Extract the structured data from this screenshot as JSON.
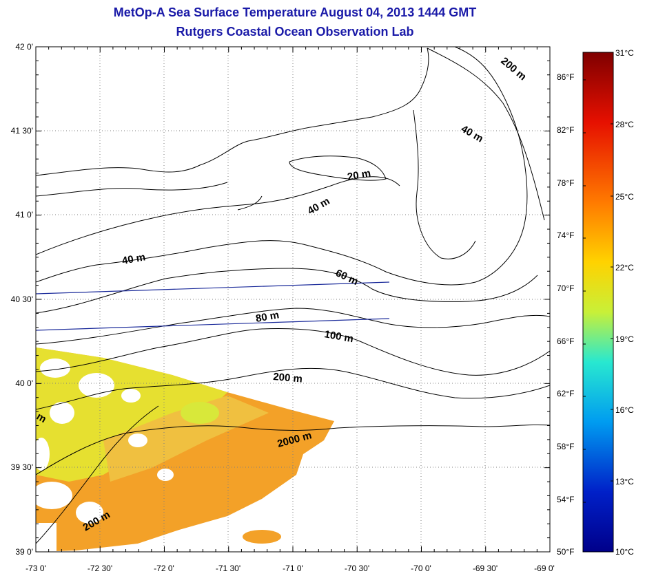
{
  "header": {
    "title": "MetOp-A Sea Surface Temperature August 04, 2013 1444 GMT",
    "subtitle": "Rutgers Coastal Ocean Observation Lab"
  },
  "axes": {
    "lon_labels": [
      "-73 0'",
      "-72 30'",
      "-72 0'",
      "-71 30'",
      "-71 0'",
      "-70 30'",
      "-70 0'",
      "-69 30'",
      "-69 0'"
    ],
    "lat_labels": [
      "42 0'",
      "41 30'",
      "41 0'",
      "40 30'",
      "40 0'",
      "39 30'",
      "39 0'"
    ],
    "fahrenheit_labels": [
      "86°F",
      "82°F",
      "78°F",
      "74°F",
      "70°F",
      "66°F",
      "62°F",
      "58°F",
      "54°F",
      "50°F"
    ]
  },
  "colorbar": {
    "celsius_labels": [
      "31°C",
      "28°C",
      "25°C",
      "22°C",
      "19°C",
      "16°C",
      "13°C",
      "10°C"
    ],
    "colors": [
      "#7f0000",
      "#e61000",
      "#ff7a00",
      "#ffd200",
      "#c8f038",
      "#28e8d0",
      "#009cf0",
      "#0020c8",
      "#00008a"
    ]
  },
  "contours": {
    "labels": [
      "20 m",
      "40 m",
      "40 m",
      "40 m",
      "60 m",
      "80 m",
      "100 m",
      "200 m",
      "200 m",
      "200 m",
      "2000 m",
      "m"
    ]
  },
  "sst_colors": {
    "warm": "#f3a128",
    "mid": "#f0c040",
    "cool": "#e6e030",
    "patch": "#d8e83a"
  }
}
